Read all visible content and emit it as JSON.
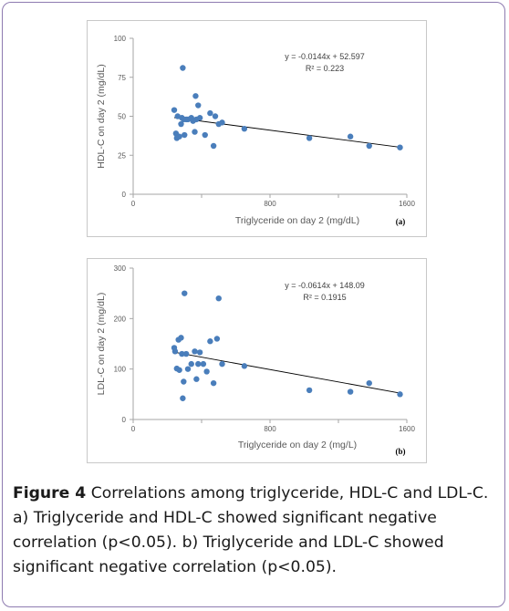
{
  "chart_data": [
    {
      "type": "scatter",
      "panel_label": "(a)",
      "xlabel": "Triglyceride on day 2 (mg/dL)",
      "ylabel": "HDL-C on day 2 (mg/dL)",
      "xlim": [
        0,
        1600
      ],
      "ylim": [
        0,
        100
      ],
      "xticks": [
        0,
        800,
        1600
      ],
      "yticks": [
        0,
        25,
        50,
        75,
        100
      ],
      "xtick_labels": [
        "0",
        "800",
        "1600"
      ],
      "ytick_labels": [
        "0",
        "25",
        "50",
        "75",
        "100"
      ],
      "intermediate_xticks": [
        400,
        1200
      ],
      "equation": "y = -0.0144x + 52.597",
      "r2": "R² = 0.223",
      "trendline": {
        "slope": -0.0144,
        "intercept": 52.597,
        "x_start": 240,
        "x_end": 1560
      },
      "marker_color": "#4a7ebb",
      "x": [
        240,
        250,
        255,
        260,
        270,
        280,
        285,
        290,
        295,
        300,
        310,
        320,
        340,
        350,
        360,
        365,
        370,
        380,
        390,
        420,
        450,
        470,
        480,
        500,
        520,
        650,
        1030,
        1270,
        1380,
        1560
      ],
      "y": [
        54,
        39,
        36,
        50,
        37,
        45,
        49,
        81,
        48,
        38,
        48,
        48,
        49,
        47,
        40,
        63,
        48,
        57,
        49,
        38,
        52,
        31,
        50,
        45,
        46,
        42,
        36,
        37,
        31,
        30
      ]
    },
    {
      "type": "scatter",
      "panel_label": "(b)",
      "xlabel": "Triglyceride on day 2 (mg/L)",
      "ylabel": "LDL-C on day 2 (mg/dL)",
      "xlim": [
        0,
        1600
      ],
      "ylim": [
        0,
        300
      ],
      "xticks": [
        0,
        800,
        1600
      ],
      "yticks": [
        0,
        100,
        200,
        300
      ],
      "xtick_labels": [
        "0",
        "800",
        "1600"
      ],
      "ytick_labels": [
        "0",
        "100",
        "200",
        "300"
      ],
      "intermediate_xticks": [
        400,
        1200
      ],
      "equation": "y = -0.0614x + 148.09",
      "r2": "R² = 0.1915",
      "trendline": {
        "slope": -0.0614,
        "intercept": 148.09,
        "x_start": 240,
        "x_end": 1560
      },
      "marker_color": "#4a7ebb",
      "x": [
        240,
        245,
        255,
        265,
        270,
        280,
        285,
        290,
        295,
        300,
        310,
        320,
        340,
        360,
        370,
        380,
        390,
        410,
        430,
        450,
        470,
        490,
        500,
        520,
        650,
        1030,
        1270,
        1380,
        1560
      ],
      "y": [
        142,
        135,
        101,
        158,
        98,
        162,
        130,
        42,
        75,
        250,
        130,
        100,
        110,
        135,
        80,
        110,
        133,
        110,
        95,
        155,
        72,
        160,
        240,
        110,
        106,
        58,
        55,
        72,
        50
      ]
    }
  ],
  "caption": {
    "label": "Figure 4",
    "line1": " Correlations among triglyceride, HDL-C and LDL-C.",
    "line2": "a) Triglyceride and HDL-C showed significant negative",
    "line3": "correlation (p<0.05). b) Triglyceride and LDL-C showed",
    "line4": "significant negative correlation (p<0.05)."
  }
}
